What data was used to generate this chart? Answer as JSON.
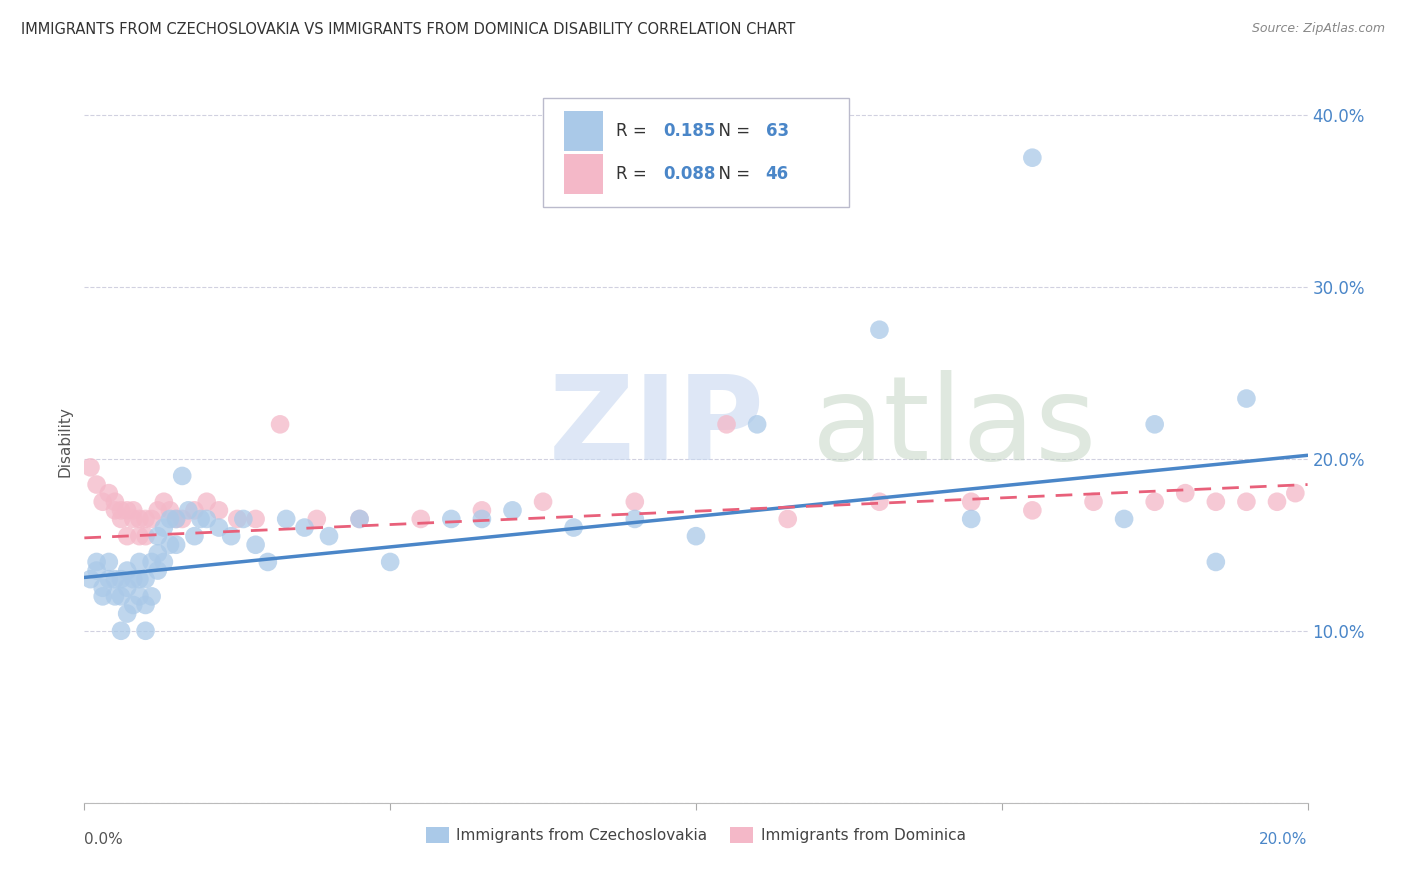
{
  "title": "IMMIGRANTS FROM CZECHOSLOVAKIA VS IMMIGRANTS FROM DOMINICA DISABILITY CORRELATION CHART",
  "source": "Source: ZipAtlas.com",
  "ylabel": "Disability",
  "yticks": [
    0.0,
    0.1,
    0.2,
    0.3,
    0.4
  ],
  "ytick_labels": [
    "",
    "10.0%",
    "20.0%",
    "30.0%",
    "40.0%"
  ],
  "xlim": [
    0.0,
    0.2
  ],
  "ylim": [
    0.0,
    0.42
  ],
  "legend_R1": "0.185",
  "legend_N1": "63",
  "legend_R2": "0.088",
  "legend_N2": "46",
  "series1_color": "#aac9e8",
  "series1_edge": "#aac9e8",
  "series2_color": "#f4b8c8",
  "series2_edge": "#f4b8c8",
  "line1_color": "#4a86c8",
  "line2_color": "#e8607a",
  "background_color": "#ffffff",
  "grid_color": "#ccccdd",
  "axis_label_color": "#4a86c8",
  "series1_x": [
    0.001,
    0.002,
    0.002,
    0.003,
    0.003,
    0.004,
    0.004,
    0.005,
    0.005,
    0.006,
    0.006,
    0.006,
    0.007,
    0.007,
    0.007,
    0.008,
    0.008,
    0.009,
    0.009,
    0.009,
    0.01,
    0.01,
    0.01,
    0.011,
    0.011,
    0.012,
    0.012,
    0.012,
    0.013,
    0.013,
    0.014,
    0.014,
    0.015,
    0.015,
    0.016,
    0.017,
    0.018,
    0.019,
    0.02,
    0.022,
    0.024,
    0.026,
    0.028,
    0.03,
    0.033,
    0.036,
    0.04,
    0.045,
    0.05,
    0.06,
    0.065,
    0.07,
    0.08,
    0.09,
    0.1,
    0.11,
    0.13,
    0.145,
    0.155,
    0.17,
    0.175,
    0.185,
    0.19
  ],
  "series1_y": [
    0.13,
    0.14,
    0.135,
    0.12,
    0.125,
    0.13,
    0.14,
    0.12,
    0.13,
    0.1,
    0.12,
    0.13,
    0.11,
    0.125,
    0.135,
    0.115,
    0.13,
    0.12,
    0.13,
    0.14,
    0.1,
    0.115,
    0.13,
    0.12,
    0.14,
    0.135,
    0.145,
    0.155,
    0.14,
    0.16,
    0.15,
    0.165,
    0.15,
    0.165,
    0.19,
    0.17,
    0.155,
    0.165,
    0.165,
    0.16,
    0.155,
    0.165,
    0.15,
    0.14,
    0.165,
    0.16,
    0.155,
    0.165,
    0.14,
    0.165,
    0.165,
    0.17,
    0.16,
    0.165,
    0.155,
    0.22,
    0.275,
    0.165,
    0.375,
    0.165,
    0.22,
    0.14,
    0.235
  ],
  "series2_x": [
    0.001,
    0.002,
    0.003,
    0.004,
    0.005,
    0.005,
    0.006,
    0.006,
    0.007,
    0.007,
    0.008,
    0.008,
    0.009,
    0.009,
    0.01,
    0.01,
    0.011,
    0.012,
    0.013,
    0.014,
    0.015,
    0.016,
    0.018,
    0.02,
    0.022,
    0.025,
    0.028,
    0.032,
    0.038,
    0.045,
    0.055,
    0.065,
    0.075,
    0.09,
    0.105,
    0.115,
    0.13,
    0.145,
    0.155,
    0.165,
    0.175,
    0.18,
    0.185,
    0.19,
    0.195,
    0.198
  ],
  "series2_y": [
    0.195,
    0.185,
    0.175,
    0.18,
    0.17,
    0.175,
    0.165,
    0.17,
    0.155,
    0.17,
    0.165,
    0.17,
    0.155,
    0.165,
    0.155,
    0.165,
    0.165,
    0.17,
    0.175,
    0.17,
    0.165,
    0.165,
    0.17,
    0.175,
    0.17,
    0.165,
    0.165,
    0.22,
    0.165,
    0.165,
    0.165,
    0.17,
    0.175,
    0.175,
    0.22,
    0.165,
    0.175,
    0.175,
    0.17,
    0.175,
    0.175,
    0.18,
    0.175,
    0.175,
    0.175,
    0.18
  ],
  "line1_x0": 0.0,
  "line1_y0": 0.131,
  "line1_x1": 0.2,
  "line1_y1": 0.202,
  "line2_x0": 0.0,
  "line2_y0": 0.154,
  "line2_x1": 0.2,
  "line2_y1": 0.185
}
